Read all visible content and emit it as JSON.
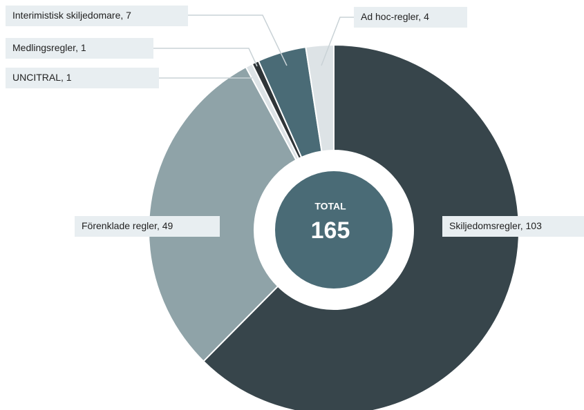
{
  "chart_data": {
    "type": "pie",
    "donut": true,
    "categories": [
      "Skiljedomsregler",
      "Förenklade regler",
      "UNCITRAL",
      "Medlingsregler",
      "Interimistisk skiljedomare",
      "Ad hoc-regler"
    ],
    "values": [
      103,
      49,
      1,
      1,
      7,
      4
    ],
    "colors": [
      "#37454b",
      "#8fa3a8",
      "#dde3e6",
      "#2f3538",
      "#4a6b76",
      "#dde3e6"
    ],
    "center_label": "TOTAL",
    "total": 165
  }
}
